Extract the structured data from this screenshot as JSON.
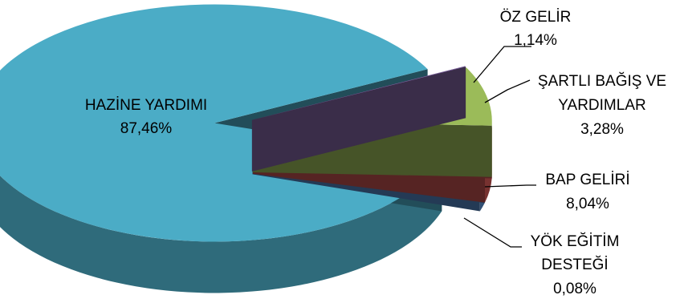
{
  "chart_data": {
    "type": "pie",
    "style": "3d-exploded",
    "slices": [
      {
        "label": "HAZİNE YARDIMI",
        "value": 87.46,
        "value_label": "87,46%",
        "color": "#4bacc6"
      },
      {
        "label": "ÖZ GELİR",
        "value": 1.14,
        "value_label": "1,14%",
        "color": "#4f81bd"
      },
      {
        "label": "ŞARTLI BAĞIŞ VE YARDIMLAR",
        "value": 3.28,
        "value_label": "3,28%",
        "color": "#c0504d"
      },
      {
        "label": "BAP GELİRİ",
        "value": 8.04,
        "value_label": "8,04%",
        "color": "#9bbb59"
      },
      {
        "label": "YÖK EĞİTİM DESTEĞİ",
        "value": 0.08,
        "value_label": "0,08%",
        "color": "#8064a2"
      }
    ],
    "label_texts": {
      "hazine_name": "HAZİNE YARDIMI",
      "hazine_pct": "87,46%",
      "oz_name": "ÖZ GELİR",
      "oz_pct": "1,14%",
      "sartli_line1": "ŞARTLI BAĞIŞ VE",
      "sartli_line2": "YARDIMLAR",
      "sartli_pct": "3,28%",
      "bap_name": "BAP GELİRİ",
      "bap_pct": "8,04%",
      "yok_line1": "YÖK EĞİTİM",
      "yok_line2": "DESTEĞİ",
      "yok_pct": "0,08%"
    }
  }
}
